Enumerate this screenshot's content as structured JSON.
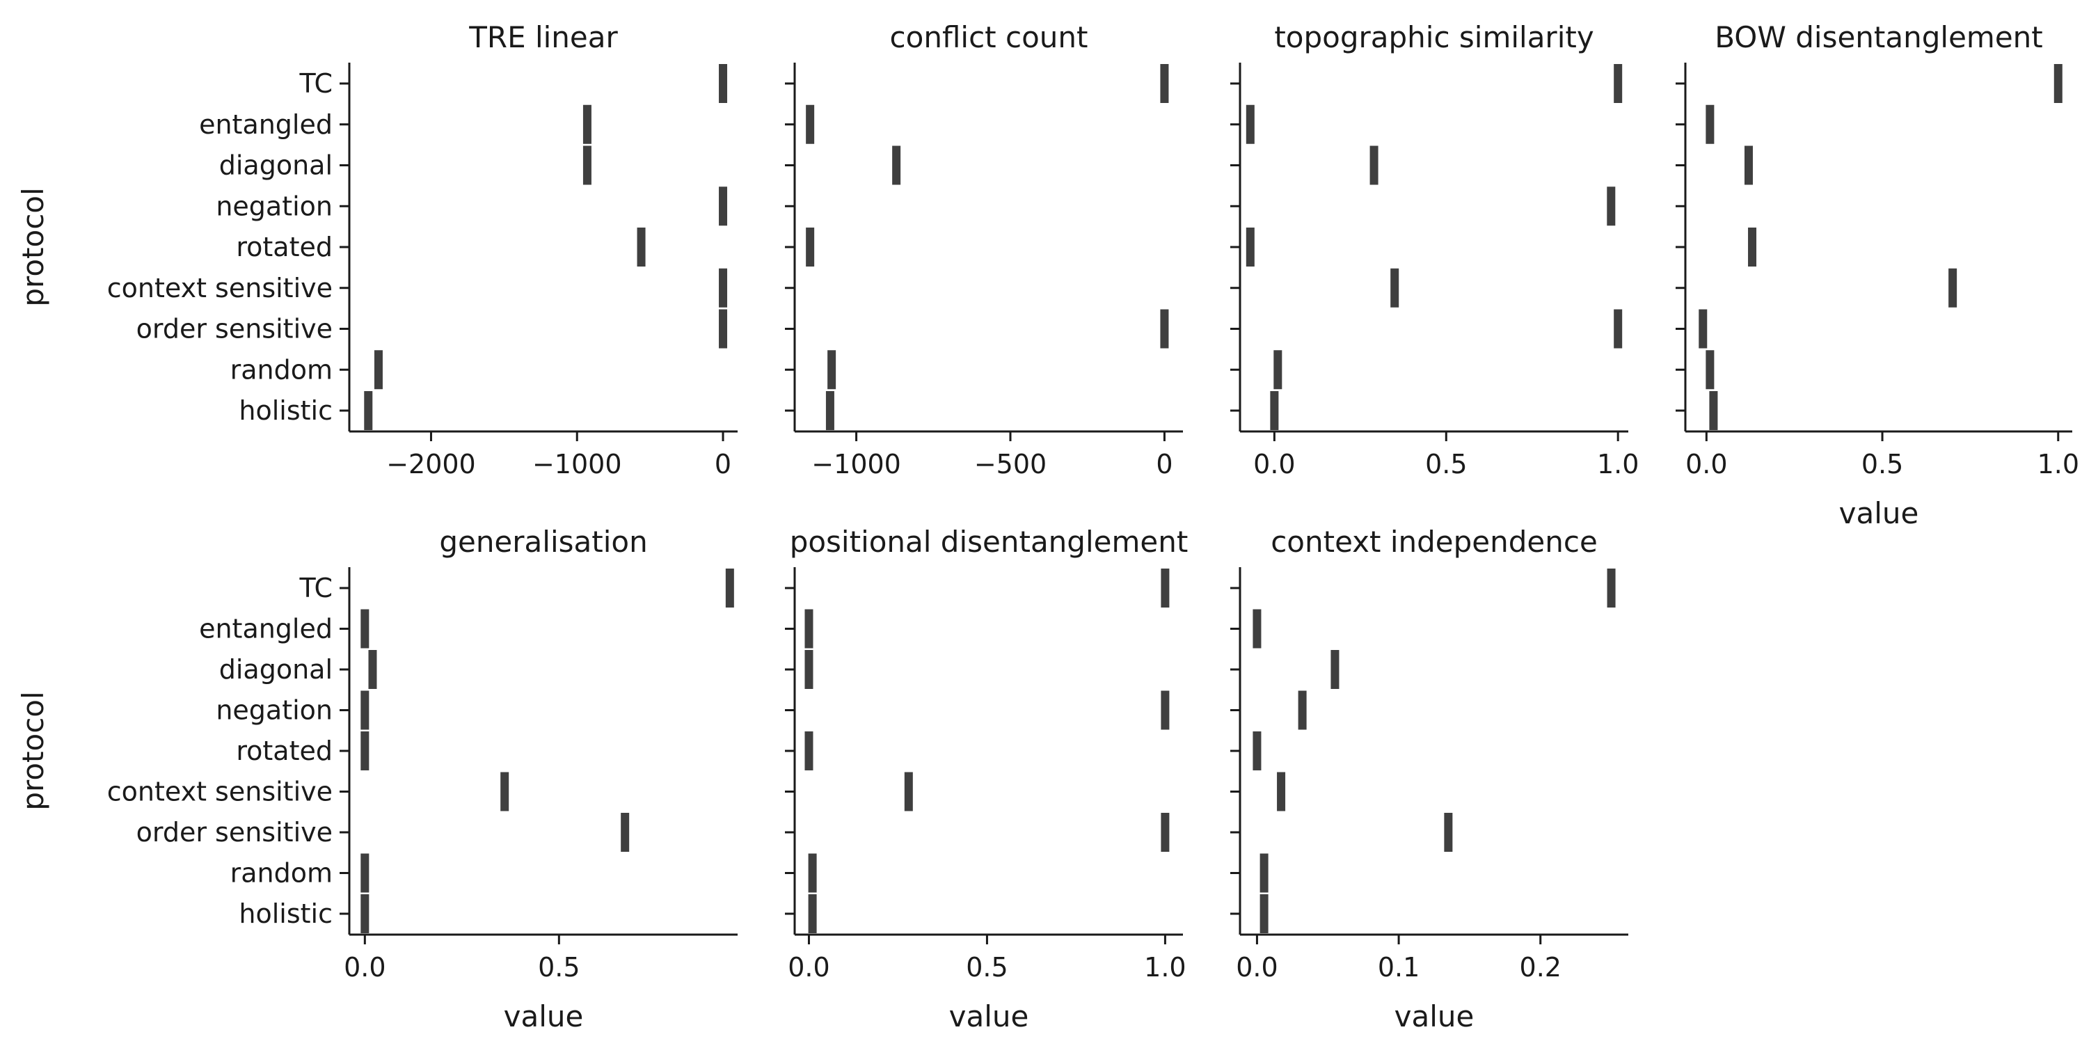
{
  "chart_data": {
    "type": "scatter",
    "mark": "vertical-tick",
    "layout": "facet-grid",
    "categories": [
      "TC",
      "entangled",
      "diagonal",
      "negation",
      "rotated",
      "context sensitive",
      "order sensitive",
      "random",
      "holistic"
    ],
    "ylabel": "protocol",
    "xlabel": "value",
    "mark_color": "#3f3f3f",
    "grid": false,
    "panels": [
      {
        "title": "TRE linear",
        "xlim": [
          -2560,
          100
        ],
        "xticks": [
          -2000,
          -1000,
          0
        ],
        "xtick_labels": [
          "−2000",
          "−1000",
          "0"
        ],
        "values": [
          0,
          -930,
          -930,
          0,
          -560,
          0,
          0,
          -2360,
          -2430
        ]
      },
      {
        "title": "conflict count",
        "xlim": [
          -1200,
          60
        ],
        "xticks": [
          -1000,
          -500,
          0
        ],
        "xtick_labels": [
          "−1000",
          "−500",
          "0"
        ],
        "values": [
          0,
          -1150,
          -870,
          null,
          -1150,
          null,
          0,
          -1080,
          -1085
        ]
      },
      {
        "title": "topographic similarity",
        "xlim": [
          -0.1,
          1.03
        ],
        "xticks": [
          0,
          0.5,
          1
        ],
        "xtick_labels": [
          "0.0",
          "0.5",
          "1.0"
        ],
        "values": [
          1.0,
          -0.07,
          0.29,
          0.98,
          -0.07,
          0.35,
          1.0,
          0.01,
          0.0
        ]
      },
      {
        "title": "BOW disentanglement",
        "xlim": [
          -0.06,
          1.04
        ],
        "xticks": [
          0,
          0.5,
          1
        ],
        "xtick_labels": [
          "0.0",
          "0.5",
          "1.0"
        ],
        "values": [
          1.0,
          0.01,
          0.12,
          null,
          0.13,
          0.7,
          -0.01,
          0.01,
          0.02
        ],
        "xlabel": "value"
      },
      {
        "title": "generalisation",
        "xlim": [
          -0.04,
          0.96
        ],
        "xticks": [
          0,
          0.5
        ],
        "xtick_labels": [
          "0.0",
          "0.5"
        ],
        "values": [
          0.94,
          0.0,
          0.02,
          0.0,
          0.0,
          0.36,
          0.67,
          0.0,
          0.0
        ],
        "xlabel": "value"
      },
      {
        "title": "positional disentanglement",
        "xlim": [
          -0.04,
          1.05
        ],
        "xticks": [
          0,
          0.5,
          1
        ],
        "xtick_labels": [
          "0.0",
          "0.5",
          "1.0"
        ],
        "values": [
          1.0,
          0.0,
          0.0,
          1.0,
          0.0,
          0.28,
          1.0,
          0.01,
          0.01
        ],
        "xlabel": "value"
      },
      {
        "title": "context independence",
        "xlim": [
          -0.012,
          0.262
        ],
        "xticks": [
          0,
          0.1,
          0.2
        ],
        "xtick_labels": [
          "0.0",
          "0.1",
          "0.2"
        ],
        "values": [
          0.25,
          0.0,
          0.055,
          0.032,
          0.0,
          0.017,
          0.135,
          0.005,
          0.005
        ],
        "xlabel": "value"
      }
    ]
  }
}
